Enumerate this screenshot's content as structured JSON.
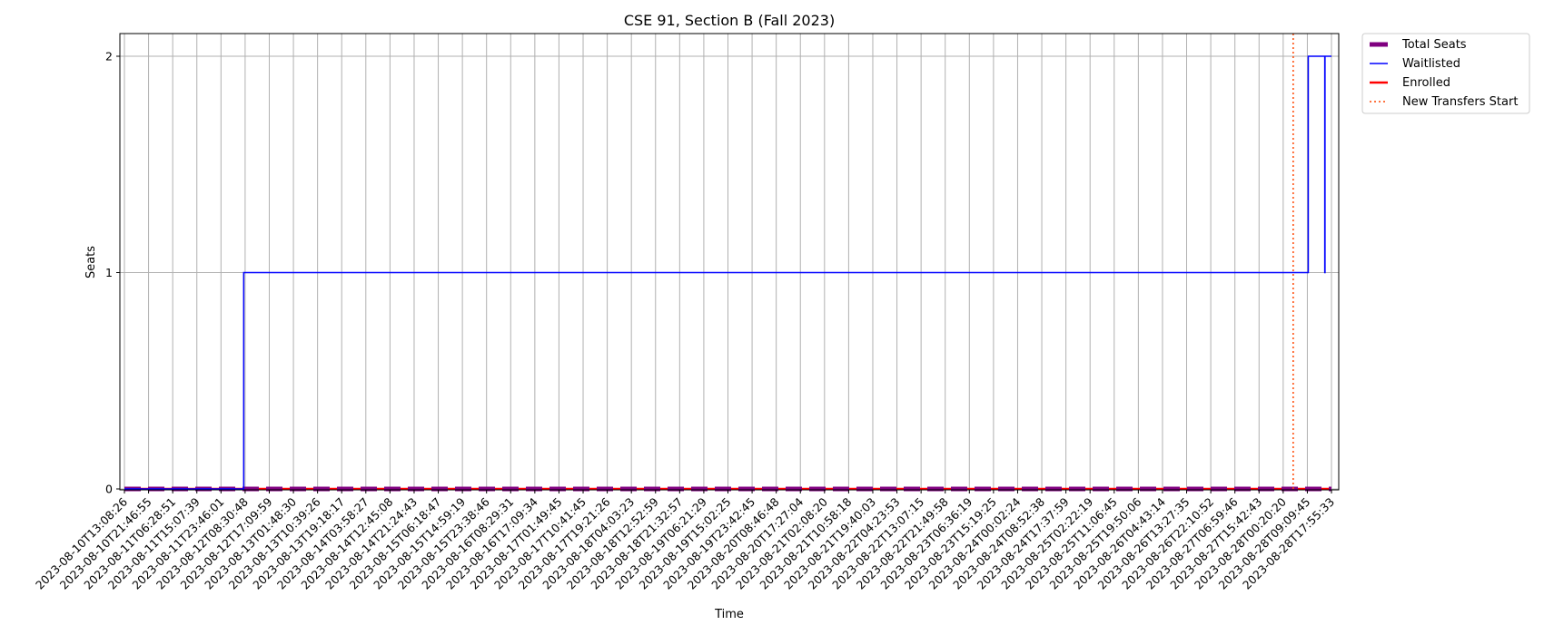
{
  "chart_data": {
    "type": "line",
    "title": "CSE 91, Section B (Fall 2023)",
    "xlabel": "Time",
    "ylabel": "Seats",
    "ylim": [
      0,
      2.1
    ],
    "yticks": [
      0,
      1,
      2
    ],
    "grid": true,
    "legend_position": "outside-top-right",
    "xtick_labels": [
      "2023-08-10T13:08:26",
      "2023-08-10T21:46:55",
      "2023-08-11T06:28:51",
      "2023-08-11T15:07:39",
      "2023-08-11T23:46:01",
      "2023-08-12T08:30:48",
      "2023-08-12T17:09:59",
      "2023-08-13T01:48:30",
      "2023-08-13T10:39:26",
      "2023-08-13T19:18:17",
      "2023-08-14T03:58:27",
      "2023-08-14T12:45:08",
      "2023-08-14T21:24:43",
      "2023-08-15T06:18:47",
      "2023-08-15T14:59:19",
      "2023-08-15T23:38:46",
      "2023-08-16T08:29:31",
      "2023-08-16T17:09:34",
      "2023-08-17T01:49:45",
      "2023-08-17T10:41:45",
      "2023-08-17T19:21:26",
      "2023-08-18T04:03:23",
      "2023-08-18T12:52:59",
      "2023-08-18T21:32:57",
      "2023-08-19T06:21:29",
      "2023-08-19T15:02:25",
      "2023-08-19T23:42:45",
      "2023-08-20T08:46:48",
      "2023-08-20T17:27:04",
      "2023-08-21T02:08:20",
      "2023-08-21T10:58:18",
      "2023-08-21T19:40:03",
      "2023-08-22T04:23:53",
      "2023-08-22T13:07:15",
      "2023-08-22T21:49:58",
      "2023-08-23T06:36:19",
      "2023-08-23T15:19:25",
      "2023-08-24T00:02:24",
      "2023-08-24T08:52:38",
      "2023-08-24T17:37:59",
      "2023-08-25T02:22:19",
      "2023-08-25T11:06:45",
      "2023-08-25T19:50:06",
      "2023-08-26T04:43:14",
      "2023-08-26T13:27:35",
      "2023-08-26T22:10:52",
      "2023-08-27T06:59:46",
      "2023-08-27T15:42:43",
      "2023-08-28T00:20:20",
      "2023-08-28T09:09:45",
      "2023-08-28T17:55:33"
    ],
    "series": [
      {
        "name": "Total Seats",
        "color": "#800080",
        "style": "dashed-thick",
        "points": [
          [
            "2023-08-10T13:08:26",
            0
          ],
          [
            "2023-08-28T17:55:33",
            0
          ]
        ]
      },
      {
        "name": "Waitlisted",
        "color": "#0000ff",
        "style": "step",
        "points": [
          [
            "2023-08-10T13:08:26",
            0
          ],
          [
            "2023-08-12T08:00:00",
            0
          ],
          [
            "2023-08-12T08:00:00",
            1
          ],
          [
            "2023-08-28T09:30:00",
            1
          ],
          [
            "2023-08-28T09:30:00",
            2
          ],
          [
            "2023-08-28T15:30:00",
            2
          ],
          [
            "2023-08-28T15:30:00",
            1
          ],
          [
            "2023-08-28T15:35:00",
            1
          ],
          [
            "2023-08-28T15:35:00",
            2
          ],
          [
            "2023-08-28T17:55:33",
            2
          ]
        ]
      },
      {
        "name": "Enrolled",
        "color": "#ff0000",
        "style": "solid-thick",
        "points": [
          [
            "2023-08-10T13:08:26",
            0
          ],
          [
            "2023-08-28T17:55:33",
            0
          ]
        ]
      }
    ],
    "markers": [
      {
        "name": "New Transfers Start",
        "color": "#ff4500",
        "style": "dotted",
        "x": "2023-08-28T04:00:00"
      }
    ]
  }
}
